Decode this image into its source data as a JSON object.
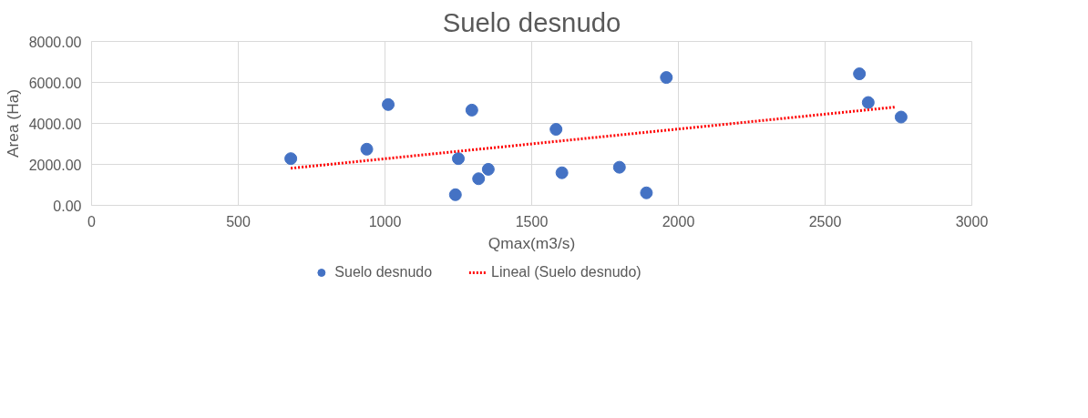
{
  "chart_data": {
    "type": "scatter",
    "title": "Suelo desnudo",
    "xlabel": "Qmax(m3/s)",
    "ylabel": "Area (Ha)",
    "xlim": [
      0,
      3000
    ],
    "xticks": [
      0,
      500,
      1000,
      1500,
      2000,
      2500,
      3000
    ],
    "ylim": [
      0,
      8000
    ],
    "yticks": [
      {
        "value": 0,
        "label": "0.00"
      },
      {
        "value": 2000,
        "label": "2000.00"
      },
      {
        "value": 4000,
        "label": "4000.00"
      },
      {
        "value": 6000,
        "label": "6000.00"
      },
      {
        "value": 8000,
        "label": "8000.00"
      }
    ],
    "grid": true,
    "legend": "bottom",
    "series": [
      {
        "name": "Suelo desnudo",
        "marker": "circle",
        "color": "#4472c4",
        "x": [
          679,
          938,
          1011,
          1250,
          1240,
          1296,
          1319,
          1352,
          1583,
          1603,
          1799,
          1891,
          1959,
          2617,
          2647,
          2759
        ],
        "values": [
          2280,
          2740,
          4920,
          2280,
          520,
          4650,
          1300,
          1760,
          3710,
          1590,
          1860,
          610,
          6240,
          6420,
          5020,
          4310
        ]
      },
      {
        "name": "Lineal (Suelo desnudo)",
        "type": "line",
        "color": "#ff0000",
        "line_style": "dotted",
        "x": [
          679,
          2741
        ],
        "values": [
          1810,
          4800
        ]
      }
    ]
  }
}
